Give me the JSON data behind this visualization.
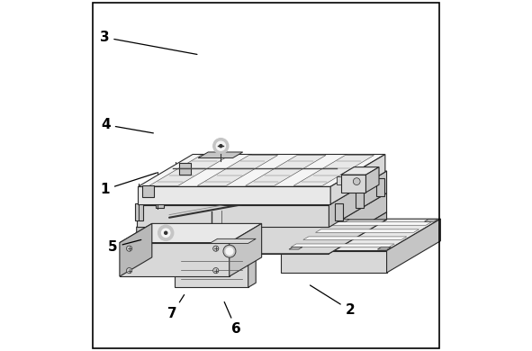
{
  "background_color": "#ffffff",
  "fig_width": 5.91,
  "fig_height": 3.9,
  "dpi": 100,
  "ec": "#2a2a2a",
  "lw_main": 0.8,
  "lw_thin": 0.5,
  "lw_thick": 1.2,
  "face_white": "#f5f5f5",
  "face_light": "#e8e8e8",
  "face_mid": "#d8d8d8",
  "face_dark": "#c5c5c5",
  "face_darker": "#b8b8b8",
  "labels": {
    "3": {
      "xt": 0.038,
      "yt": 0.895,
      "xa": 0.31,
      "ya": 0.845
    },
    "4": {
      "xt": 0.042,
      "yt": 0.645,
      "xa": 0.185,
      "ya": 0.62
    },
    "1": {
      "xt": 0.04,
      "yt": 0.46,
      "xa": 0.195,
      "ya": 0.51
    },
    "5": {
      "xt": 0.062,
      "yt": 0.295,
      "xa": 0.15,
      "ya": 0.318
    },
    "2": {
      "xt": 0.74,
      "yt": 0.115,
      "xa": 0.62,
      "ya": 0.19
    },
    "6": {
      "xt": 0.415,
      "yt": 0.06,
      "xa": 0.378,
      "ya": 0.145
    },
    "7": {
      "xt": 0.232,
      "yt": 0.105,
      "xa": 0.27,
      "ya": 0.165
    }
  }
}
